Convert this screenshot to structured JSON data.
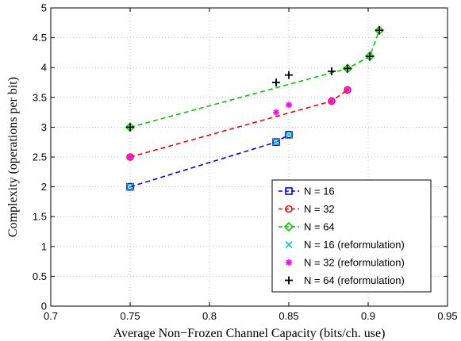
{
  "chart_data": {
    "type": "line",
    "xlabel": "Average Non−Frozen Channel Capacity (bits/ch. use)",
    "ylabel": "Complexity (operations per bit)",
    "xlim": [
      0.7,
      0.95
    ],
    "ylim": [
      0,
      5
    ],
    "xticks": [
      0.7,
      0.75,
      0.8,
      0.85,
      0.9,
      0.95
    ],
    "xtick_labels": [
      "0.7",
      "0.75",
      "0.8",
      "0.85",
      "0.9",
      "0.95"
    ],
    "yticks": [
      0,
      0.5,
      1,
      1.5,
      2,
      2.5,
      3,
      3.5,
      4,
      4.5,
      5
    ],
    "ytick_labels": [
      "0",
      "0.5",
      "1",
      "1.5",
      "2",
      "2.5",
      "3",
      "3.5",
      "4",
      "4.5",
      "5"
    ],
    "grid": true,
    "legend_position": "lower-right",
    "series": [
      {
        "name": "N = 16",
        "color": "#0000ff",
        "line": "dashed",
        "marker": "square",
        "x": [
          0.75,
          0.842,
          0.85
        ],
        "y": [
          2.0,
          2.75,
          2.875
        ]
      },
      {
        "name": "N = 32",
        "color": "#ff0000",
        "line": "dashed",
        "marker": "circle",
        "x": [
          0.75,
          0.877,
          0.887
        ],
        "y": [
          2.5,
          3.438,
          3.625
        ]
      },
      {
        "name": "N = 64",
        "color": "#00cc00",
        "line": "dashed",
        "marker": "diamond",
        "x": [
          0.75,
          0.887,
          0.901,
          0.907
        ],
        "y": [
          3.0,
          3.984,
          4.188,
          4.625
        ]
      },
      {
        "name": "N = 16 (reformulation)",
        "color": "#00cccc",
        "line": "none",
        "marker": "x",
        "x": [
          0.75,
          0.842,
          0.85
        ],
        "y": [
          2.0,
          2.75,
          2.875
        ]
      },
      {
        "name": "N = 32 (reformulation)",
        "color": "#ff00ff",
        "line": "none",
        "marker": "star",
        "x": [
          0.75,
          0.842,
          0.85,
          0.877,
          0.887
        ],
        "y": [
          2.5,
          3.25,
          3.375,
          3.438,
          3.625
        ]
      },
      {
        "name": "N = 64 (reformulation)",
        "color": "#000000",
        "line": "none",
        "marker": "plus",
        "x": [
          0.75,
          0.842,
          0.85,
          0.877,
          0.887,
          0.901,
          0.907
        ],
        "y": [
          3.0,
          3.75,
          3.875,
          3.938,
          3.984,
          4.188,
          4.625
        ]
      }
    ]
  }
}
